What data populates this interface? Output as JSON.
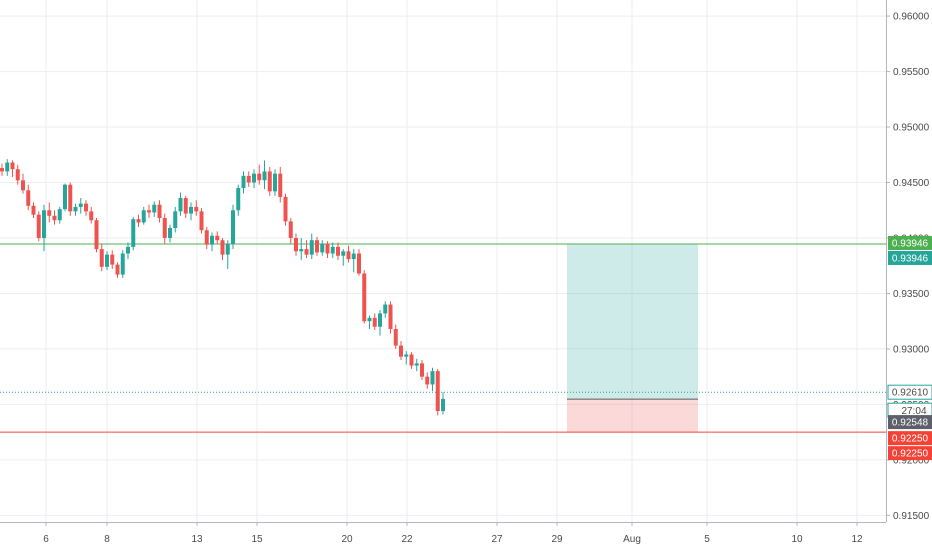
{
  "chart_data": {
    "type": "candlestick",
    "x_labels": [
      "6",
      "8",
      "13",
      "15",
      "20",
      "22",
      "27",
      "29",
      "Aug",
      "5",
      "10",
      "12"
    ],
    "y_ticks": [
      "0.96000",
      "0.95500",
      "0.95000",
      "0.94500",
      "0.94000",
      "0.93500",
      "0.93000",
      "0.92500",
      "0.92000",
      "0.91500"
    ],
    "ylim": [
      0.9144,
      0.961
    ],
    "grid": true,
    "candles": [
      [
        0.9463,
        0.9467,
        0.9456,
        0.946
      ],
      [
        0.946,
        0.9471,
        0.9456,
        0.9468
      ],
      [
        0.9468,
        0.947,
        0.9455,
        0.9462
      ],
      [
        0.9462,
        0.9466,
        0.9448,
        0.9452
      ],
      [
        0.9452,
        0.9458,
        0.944,
        0.9443
      ],
      [
        0.9443,
        0.9448,
        0.9425,
        0.9429
      ],
      [
        0.9429,
        0.9432,
        0.9418,
        0.9421
      ],
      [
        0.9421,
        0.9424,
        0.9397,
        0.94
      ],
      [
        0.94,
        0.943,
        0.9388,
        0.9425
      ],
      [
        0.9425,
        0.9432,
        0.9414,
        0.942
      ],
      [
        0.942,
        0.9425,
        0.9412,
        0.9416
      ],
      [
        0.9416,
        0.9428,
        0.9413,
        0.9426
      ],
      [
        0.9426,
        0.9449,
        0.9424,
        0.9448
      ],
      [
        0.9448,
        0.945,
        0.942,
        0.9424
      ],
      [
        0.9424,
        0.9431,
        0.942,
        0.9428
      ],
      [
        0.9428,
        0.9436,
        0.9422,
        0.9431
      ],
      [
        0.9431,
        0.9434,
        0.942,
        0.9424
      ],
      [
        0.9424,
        0.9428,
        0.9413,
        0.9416
      ],
      [
        0.9416,
        0.9418,
        0.9387,
        0.939
      ],
      [
        0.939,
        0.9395,
        0.937,
        0.9374
      ],
      [
        0.9374,
        0.9388,
        0.9371,
        0.9385
      ],
      [
        0.9385,
        0.9389,
        0.9372,
        0.9376
      ],
      [
        0.9376,
        0.9378,
        0.9364,
        0.9367
      ],
      [
        0.9367,
        0.9389,
        0.9364,
        0.9386
      ],
      [
        0.9386,
        0.9396,
        0.9381,
        0.9392
      ],
      [
        0.9392,
        0.9419,
        0.9389,
        0.9417
      ],
      [
        0.9417,
        0.9421,
        0.941,
        0.9414
      ],
      [
        0.9414,
        0.9428,
        0.9412,
        0.9425
      ],
      [
        0.9425,
        0.943,
        0.9418,
        0.9423
      ],
      [
        0.9423,
        0.9433,
        0.9419,
        0.943
      ],
      [
        0.943,
        0.9434,
        0.9414,
        0.9418
      ],
      [
        0.9418,
        0.9422,
        0.9395,
        0.94
      ],
      [
        0.94,
        0.9412,
        0.9396,
        0.9409
      ],
      [
        0.9409,
        0.9428,
        0.9405,
        0.9424
      ],
      [
        0.9424,
        0.9441,
        0.942,
        0.9436
      ],
      [
        0.9436,
        0.9438,
        0.9418,
        0.9422
      ],
      [
        0.9422,
        0.9432,
        0.9416,
        0.9428
      ],
      [
        0.9428,
        0.9434,
        0.942,
        0.9424
      ],
      [
        0.9424,
        0.9427,
        0.9404,
        0.9407
      ],
      [
        0.9407,
        0.941,
        0.939,
        0.9394
      ],
      [
        0.9394,
        0.9405,
        0.9388,
        0.9402
      ],
      [
        0.9402,
        0.9406,
        0.9395,
        0.9398
      ],
      [
        0.9398,
        0.94,
        0.938,
        0.9385
      ],
      [
        0.9385,
        0.9398,
        0.9372,
        0.9395
      ],
      [
        0.9395,
        0.943,
        0.939,
        0.9425
      ],
      [
        0.9425,
        0.9448,
        0.942,
        0.9445
      ],
      [
        0.9445,
        0.946,
        0.944,
        0.9456
      ],
      [
        0.9456,
        0.946,
        0.9446,
        0.945
      ],
      [
        0.945,
        0.9462,
        0.9445,
        0.9458
      ],
      [
        0.9458,
        0.9466,
        0.9448,
        0.9452
      ],
      [
        0.9452,
        0.947,
        0.9444,
        0.946
      ],
      [
        0.946,
        0.9464,
        0.9438,
        0.9442
      ],
      [
        0.9442,
        0.9462,
        0.9438,
        0.9458
      ],
      [
        0.9458,
        0.9464,
        0.9432,
        0.9437
      ],
      [
        0.9437,
        0.944,
        0.9411,
        0.9415
      ],
      [
        0.9415,
        0.9418,
        0.9395,
        0.94
      ],
      [
        0.94,
        0.9404,
        0.9384,
        0.9388
      ],
      [
        0.9388,
        0.94,
        0.938,
        0.939
      ],
      [
        0.939,
        0.9398,
        0.9382,
        0.9385
      ],
      [
        0.9385,
        0.9404,
        0.9381,
        0.9398
      ],
      [
        0.9398,
        0.9401,
        0.9384,
        0.9387
      ],
      [
        0.9387,
        0.9398,
        0.9384,
        0.9395
      ],
      [
        0.9395,
        0.9397,
        0.9382,
        0.9386
      ],
      [
        0.9386,
        0.9396,
        0.9382,
        0.9392
      ],
      [
        0.9392,
        0.9396,
        0.938,
        0.9384
      ],
      [
        0.9384,
        0.939,
        0.9375,
        0.9388
      ],
      [
        0.9388,
        0.9393,
        0.9378,
        0.9381
      ],
      [
        0.9381,
        0.939,
        0.9369,
        0.9386
      ],
      [
        0.9386,
        0.939,
        0.9366,
        0.9368
      ],
      [
        0.9368,
        0.9371,
        0.9323,
        0.9325
      ],
      [
        0.9325,
        0.933,
        0.9318,
        0.9328
      ],
      [
        0.9328,
        0.9332,
        0.9317,
        0.932
      ],
      [
        0.932,
        0.9335,
        0.9312,
        0.9332
      ],
      [
        0.9332,
        0.9343,
        0.9328,
        0.934
      ],
      [
        0.934,
        0.9343,
        0.9314,
        0.9318
      ],
      [
        0.9318,
        0.9322,
        0.93,
        0.9303
      ],
      [
        0.9303,
        0.9307,
        0.929,
        0.9293
      ],
      [
        0.9293,
        0.9298,
        0.9286,
        0.9295
      ],
      [
        0.9295,
        0.9297,
        0.9282,
        0.9285
      ],
      [
        0.9285,
        0.9291,
        0.928,
        0.9287
      ],
      [
        0.9287,
        0.929,
        0.9272,
        0.9275
      ],
      [
        0.9275,
        0.9279,
        0.9264,
        0.9268
      ],
      [
        0.9268,
        0.9283,
        0.9262,
        0.928
      ],
      [
        0.928,
        0.9282,
        0.924,
        0.9244
      ],
      [
        0.9244,
        0.9261,
        0.9241,
        0.9255
      ]
    ],
    "colors": {
      "up": "#26a69a",
      "down": "#ef5350",
      "target": "#4caf50",
      "stop": "#f44336"
    },
    "levels": {
      "target": {
        "value": 0.93946,
        "label": "0.93946"
      },
      "stop": {
        "value": 0.9225,
        "label": "0.92250"
      },
      "current": {
        "value": 0.9261,
        "label": "0.92610"
      },
      "entry": {
        "value": 0.92548,
        "label": "0.92548"
      }
    },
    "countdown": "27:04",
    "position_box": {
      "entry": 0.92548,
      "target": 0.93946,
      "stop": 0.9225,
      "x_start_day": "29",
      "x_end_day": "5"
    }
  }
}
